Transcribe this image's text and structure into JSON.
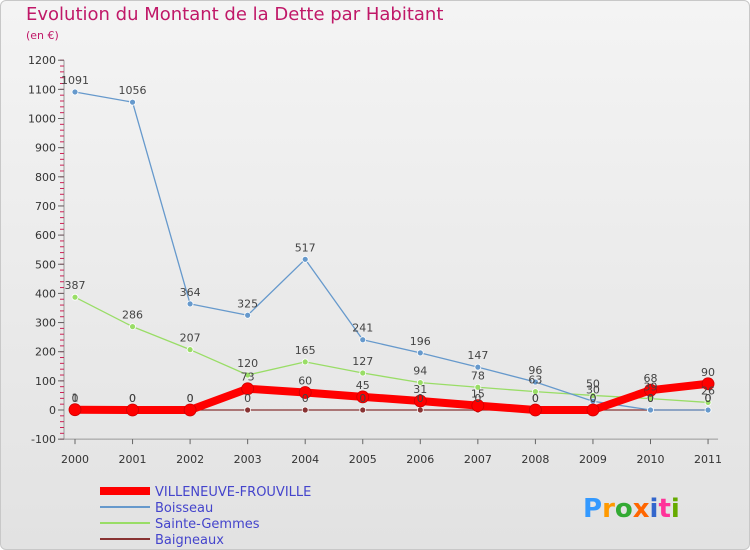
{
  "title": "Evolution du Montant de la Dette par Habitant",
  "subtitle": "(en €)",
  "brand": "Proxiti",
  "chart_data": {
    "type": "line",
    "title": "Evolution du Montant de la Dette par Habitant",
    "ylabel": "(en €)",
    "x": [
      "2000",
      "2001",
      "2002",
      "2003",
      "2004",
      "2005",
      "2006",
      "2007",
      "2008",
      "2009",
      "2010",
      "2011"
    ],
    "ylim": [
      -100,
      1200
    ],
    "yticks": [
      "-100",
      "0",
      "100",
      "200",
      "300",
      "400",
      "500",
      "600",
      "700",
      "800",
      "900",
      "1000",
      "1100",
      "1200"
    ],
    "grid": false,
    "legend_position": "bottom-left",
    "series": [
      {
        "name": "VILLENEUVE-FROUVILLE",
        "color": "#ff0000",
        "width": 8,
        "values": [
          1,
          0,
          0,
          73,
          60,
          45,
          31,
          15,
          0,
          0,
          68,
          90
        ],
        "labels": [
          "1",
          "0",
          "0",
          "73",
          "60",
          "45",
          "31",
          "15",
          "0",
          "0",
          "68",
          "90"
        ]
      },
      {
        "name": "Boisseau",
        "color": "#6699cc",
        "width": 1.3,
        "values": [
          1091,
          1056,
          364,
          325,
          517,
          241,
          196,
          147,
          96,
          30,
          0,
          0
        ],
        "labels": [
          "1091",
          "1056",
          "364",
          "325",
          "517",
          "241",
          "196",
          "147",
          "96",
          "30",
          "0",
          "0"
        ]
      },
      {
        "name": "Sainte-Gemmes",
        "color": "#99dd66",
        "width": 1.3,
        "values": [
          387,
          286,
          207,
          120,
          165,
          127,
          94,
          78,
          63,
          50,
          39,
          26
        ],
        "labels": [
          "387",
          "286",
          "207",
          "120",
          "165",
          "127",
          "94",
          "78",
          "63",
          "50",
          "39",
          "26"
        ]
      },
      {
        "name": "Baigneaux",
        "color": "#883333",
        "width": 1.3,
        "values": [
          0,
          0,
          0,
          0,
          0,
          0,
          0,
          0,
          0,
          0,
          0,
          0
        ],
        "labels": [
          "0",
          "0",
          "0",
          "0",
          "0",
          "0",
          "0",
          "0",
          "0",
          "0",
          "0",
          "0"
        ]
      }
    ]
  }
}
